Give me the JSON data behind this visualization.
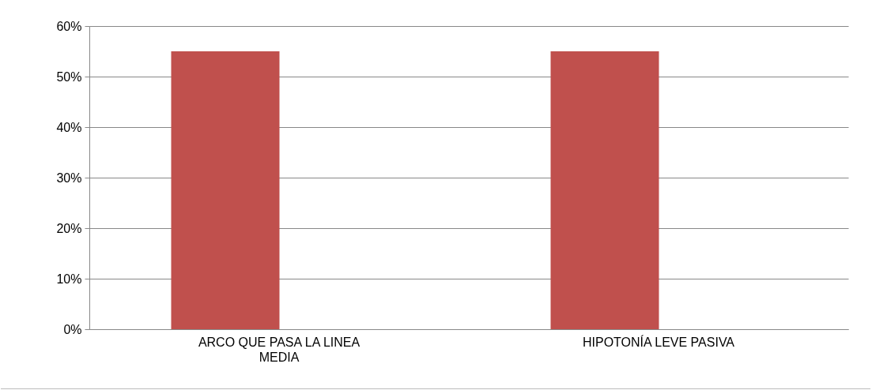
{
  "chart_data": {
    "type": "bar",
    "categories": [
      "ARCO QUE PASA LA LINEA MEDIA",
      "HIPOTONÍA LEVE PASIVA"
    ],
    "values": [
      55,
      55
    ],
    "color": "#c0504d",
    "ylim": [
      0,
      60
    ],
    "yticks": [
      {
        "value": 0,
        "label": "0%"
      },
      {
        "value": 10,
        "label": "10%"
      },
      {
        "value": 20,
        "label": "20%"
      },
      {
        "value": 30,
        "label": "30%"
      },
      {
        "value": 40,
        "label": "40%"
      },
      {
        "value": 50,
        "label": "50%"
      },
      {
        "value": 60,
        "label": "60%"
      }
    ],
    "grid": "y"
  }
}
